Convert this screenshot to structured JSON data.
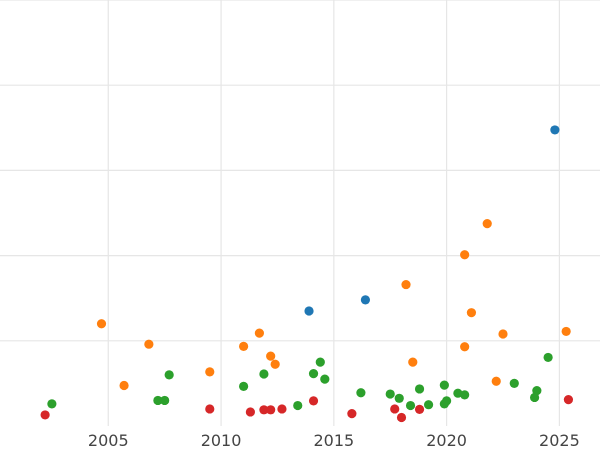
{
  "chart_data": {
    "type": "scatter",
    "title": "",
    "xlabel": "",
    "ylabel": "",
    "xlim": [
      2000.2,
      2026.8
    ],
    "ylim": [
      0,
      100
    ],
    "x_ticks": [
      2005,
      2010,
      2015,
      2020,
      2025
    ],
    "x_tick_labels": [
      "2005",
      "2010",
      "2015",
      "2020",
      "2025"
    ],
    "y_ticks": [
      20,
      40,
      60,
      80,
      100
    ],
    "y_tick_labels": [],
    "grid": true,
    "legend": "none",
    "series": [
      {
        "color": "#1f77b4",
        "points": [
          {
            "x": 2013.9,
            "y": 27.0
          },
          {
            "x": 2016.4,
            "y": 29.6
          },
          {
            "x": 2024.8,
            "y": 69.5
          }
        ]
      },
      {
        "color": "#ff7f0e",
        "points": [
          {
            "x": 2004.7,
            "y": 24.0
          },
          {
            "x": 2005.7,
            "y": 9.5
          },
          {
            "x": 2006.8,
            "y": 19.2
          },
          {
            "x": 2009.5,
            "y": 12.7
          },
          {
            "x": 2011.0,
            "y": 18.7
          },
          {
            "x": 2011.7,
            "y": 21.8
          },
          {
            "x": 2012.2,
            "y": 16.4
          },
          {
            "x": 2012.4,
            "y": 14.5
          },
          {
            "x": 2018.2,
            "y": 33.2
          },
          {
            "x": 2018.5,
            "y": 15.0
          },
          {
            "x": 2020.8,
            "y": 40.2
          },
          {
            "x": 2020.8,
            "y": 18.6
          },
          {
            "x": 2021.1,
            "y": 26.6
          },
          {
            "x": 2021.8,
            "y": 47.5
          },
          {
            "x": 2022.2,
            "y": 10.5
          },
          {
            "x": 2022.5,
            "y": 21.6
          },
          {
            "x": 2025.3,
            "y": 22.2
          }
        ]
      },
      {
        "color": "#2ca02c",
        "points": [
          {
            "x": 2002.5,
            "y": 5.2
          },
          {
            "x": 2007.2,
            "y": 6.0
          },
          {
            "x": 2007.5,
            "y": 6.0
          },
          {
            "x": 2007.7,
            "y": 12.0
          },
          {
            "x": 2011.0,
            "y": 9.3
          },
          {
            "x": 2011.9,
            "y": 12.2
          },
          {
            "x": 2013.4,
            "y": 4.8
          },
          {
            "x": 2014.1,
            "y": 12.3
          },
          {
            "x": 2014.4,
            "y": 15.0
          },
          {
            "x": 2014.6,
            "y": 11.0
          },
          {
            "x": 2016.2,
            "y": 7.8
          },
          {
            "x": 2017.5,
            "y": 7.5
          },
          {
            "x": 2017.9,
            "y": 6.5
          },
          {
            "x": 2018.4,
            "y": 4.8
          },
          {
            "x": 2018.8,
            "y": 8.7
          },
          {
            "x": 2019.2,
            "y": 5.0
          },
          {
            "x": 2019.9,
            "y": 5.2
          },
          {
            "x": 2020.0,
            "y": 5.9
          },
          {
            "x": 2019.9,
            "y": 9.6
          },
          {
            "x": 2020.5,
            "y": 7.7
          },
          {
            "x": 2020.8,
            "y": 7.3
          },
          {
            "x": 2023.0,
            "y": 10.0
          },
          {
            "x": 2023.9,
            "y": 6.7
          },
          {
            "x": 2024.0,
            "y": 8.3
          },
          {
            "x": 2024.5,
            "y": 16.1
          }
        ]
      },
      {
        "color": "#d62728",
        "points": [
          {
            "x": 2002.2,
            "y": 2.6
          },
          {
            "x": 2009.5,
            "y": 4.0
          },
          {
            "x": 2011.3,
            "y": 3.3
          },
          {
            "x": 2011.9,
            "y": 3.8
          },
          {
            "x": 2012.2,
            "y": 3.8
          },
          {
            "x": 2012.7,
            "y": 4.0
          },
          {
            "x": 2014.1,
            "y": 5.9
          },
          {
            "x": 2015.8,
            "y": 2.9
          },
          {
            "x": 2017.7,
            "y": 4.0
          },
          {
            "x": 2018.0,
            "y": 2.0
          },
          {
            "x": 2018.8,
            "y": 3.9
          },
          {
            "x": 2025.4,
            "y": 6.2
          }
        ]
      }
    ]
  }
}
